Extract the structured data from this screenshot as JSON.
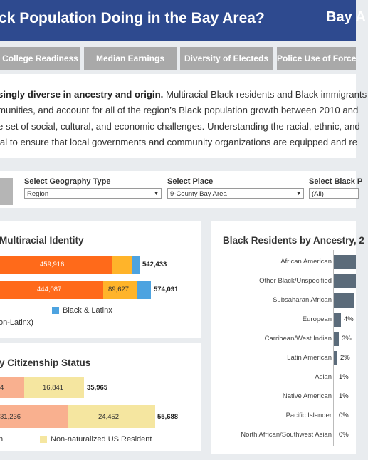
{
  "header": {
    "title": "ck Population Doing in the Bay Area?",
    "brand": "Bay A"
  },
  "tabs": [
    {
      "label": "College Readiness"
    },
    {
      "label": "Median Earnings"
    },
    {
      "label": "Diversity of Electeds"
    },
    {
      "label": "Police Use of Force"
    }
  ],
  "intro": {
    "bold_lead": "singly diverse in ancestry and origin.",
    "line1_rest": " Multiracial Black residents and Black immigrants",
    "line2": "munities, and account for all of the region’s Black population growth between 2010 and",
    "line3": "e set of social, cultural, and economic challenges. Understanding the racial, ethnic, and",
    "line4": "ial to ensure that local governments and community organizations are equipped and re"
  },
  "filters": {
    "geography_type": {
      "label": "Select Geography Type",
      "value": "Region"
    },
    "place": {
      "label": "Select Place",
      "value": "9-County Bay Area"
    },
    "black_pop": {
      "label": "Select Black P",
      "value": "(All)"
    }
  },
  "multiracial": {
    "title": "Multiracial Identity",
    "rows": [
      {
        "segments": [
          {
            "value": "459,916",
            "color": "#ff6a1a",
            "fraction": 0.848
          },
          {
            "value": "",
            "color": "#ffb42a",
            "fraction": 0.118
          },
          {
            "value": "",
            "color": "#4da3e0",
            "fraction": 0.034
          }
        ],
        "total": "542,433"
      },
      {
        "segments": [
          {
            "value": "444,087",
            "color": "#ff6a1a",
            "fraction": 0.774
          },
          {
            "value": "89,627",
            "color": "#ffb42a",
            "fraction": 0.156
          },
          {
            "value": "",
            "color": "#4da3e0",
            "fraction": 0.07
          }
        ],
        "total": "574,091"
      }
    ],
    "legend": [
      {
        "label": "Black & Latinx",
        "color": "#4da3e0"
      }
    ],
    "footnote": "on-Latinx)"
  },
  "citizenship": {
    "title": "y Citizenship Status",
    "rows": [
      {
        "segments": [
          {
            "value": "4",
            "color": "#f9b08f",
            "fraction": 0.532
          },
          {
            "value": "16,841",
            "color": "#f5e6a0",
            "fraction": 0.468
          }
        ],
        "total": "35,965"
      },
      {
        "segments": [
          {
            "value": "31,236",
            "color": "#f9b08f",
            "fraction": 0.561
          },
          {
            "value": "24,452",
            "color": "#f5e6a0",
            "fraction": 0.439
          }
        ],
        "total": "55,688"
      }
    ],
    "legend": [
      {
        "label": "n",
        "color": null
      },
      {
        "label": "Non-naturalized US Resident",
        "color": "#f5e6a0"
      }
    ]
  },
  "ancestry": {
    "title": "Black Residents by Ancestry, 2",
    "rows": [
      {
        "label": "African American",
        "pct": "",
        "fraction": 1.0
      },
      {
        "label": "Other Black/Unspecified",
        "pct": "",
        "fraction": 1.0
      },
      {
        "label": "Subsaharan African",
        "pct": "",
        "fraction": 0.85
      },
      {
        "label": "European",
        "pct": "4%",
        "fraction": 0.3
      },
      {
        "label": "Carribean/West Indian",
        "pct": "3%",
        "fraction": 0.2
      },
      {
        "label": "Latin American",
        "pct": "2%",
        "fraction": 0.14
      },
      {
        "label": "Asian",
        "pct": "1%",
        "fraction": 0.0
      },
      {
        "label": "Native American",
        "pct": "1%",
        "fraction": 0.0
      },
      {
        "label": "Pacific Islander",
        "pct": "0%",
        "fraction": 0.0
      },
      {
        "label": "North African/Southwest Asian",
        "pct": "0%",
        "fraction": 0.0
      }
    ],
    "bar_color": "#5b6b7a"
  }
}
